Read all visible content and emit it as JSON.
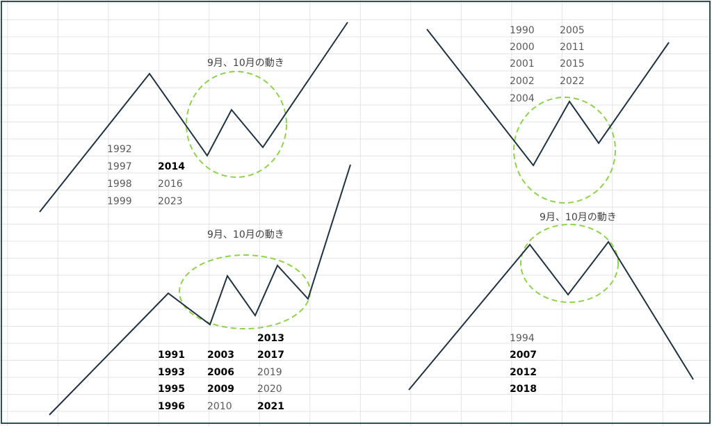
{
  "colors": {
    "gridline": "#e3e3e3",
    "border": "#2f4f4f",
    "line": "#1f3040",
    "circle": "#8ed24a",
    "year_normal": "#595959",
    "year_bold": "#000000"
  },
  "panels": [
    {
      "id": "top-left",
      "caption": "9月、10月の動き",
      "columns": [
        [
          {
            "text": "1992",
            "bold": false
          },
          {
            "text": "1997",
            "bold": false
          },
          {
            "text": "1998",
            "bold": false
          },
          {
            "text": "1999",
            "bold": false
          }
        ],
        [
          {
            "text": "",
            "bold": false
          },
          {
            "text": "2014",
            "bold": true
          },
          {
            "text": "2016",
            "bold": false
          },
          {
            "text": "2023",
            "bold": false
          }
        ]
      ]
    },
    {
      "id": "top-right",
      "caption": "",
      "columns": [
        [
          {
            "text": "1990",
            "bold": false
          },
          {
            "text": "2000",
            "bold": false
          },
          {
            "text": "2001",
            "bold": false
          },
          {
            "text": "2002",
            "bold": false
          },
          {
            "text": "2004",
            "bold": false
          }
        ],
        [
          {
            "text": "2005",
            "bold": false
          },
          {
            "text": "2011",
            "bold": false
          },
          {
            "text": "2015",
            "bold": false
          },
          {
            "text": "2022",
            "bold": false
          }
        ]
      ]
    },
    {
      "id": "bottom-left",
      "caption": "9月、10月の動き",
      "columns": [
        [
          {
            "text": "1991",
            "bold": true
          },
          {
            "text": "1993",
            "bold": true
          },
          {
            "text": "1995",
            "bold": true
          },
          {
            "text": "1996",
            "bold": true
          }
        ],
        [
          {
            "text": "2003",
            "bold": true
          },
          {
            "text": "2006",
            "bold": true
          },
          {
            "text": "2009",
            "bold": true
          },
          {
            "text": "2010",
            "bold": false
          }
        ],
        [
          {
            "text": "2013",
            "bold": true
          },
          {
            "text": "2017",
            "bold": true
          },
          {
            "text": "2019",
            "bold": false
          },
          {
            "text": "2020",
            "bold": false
          },
          {
            "text": "2021",
            "bold": true
          }
        ]
      ]
    },
    {
      "id": "bottom-right",
      "caption": "9月、10月の動き",
      "columns": [
        [
          {
            "text": "1994",
            "bold": false
          },
          {
            "text": "2007",
            "bold": true
          },
          {
            "text": "2012",
            "bold": true
          },
          {
            "text": "2018",
            "bold": true
          }
        ]
      ]
    }
  ]
}
